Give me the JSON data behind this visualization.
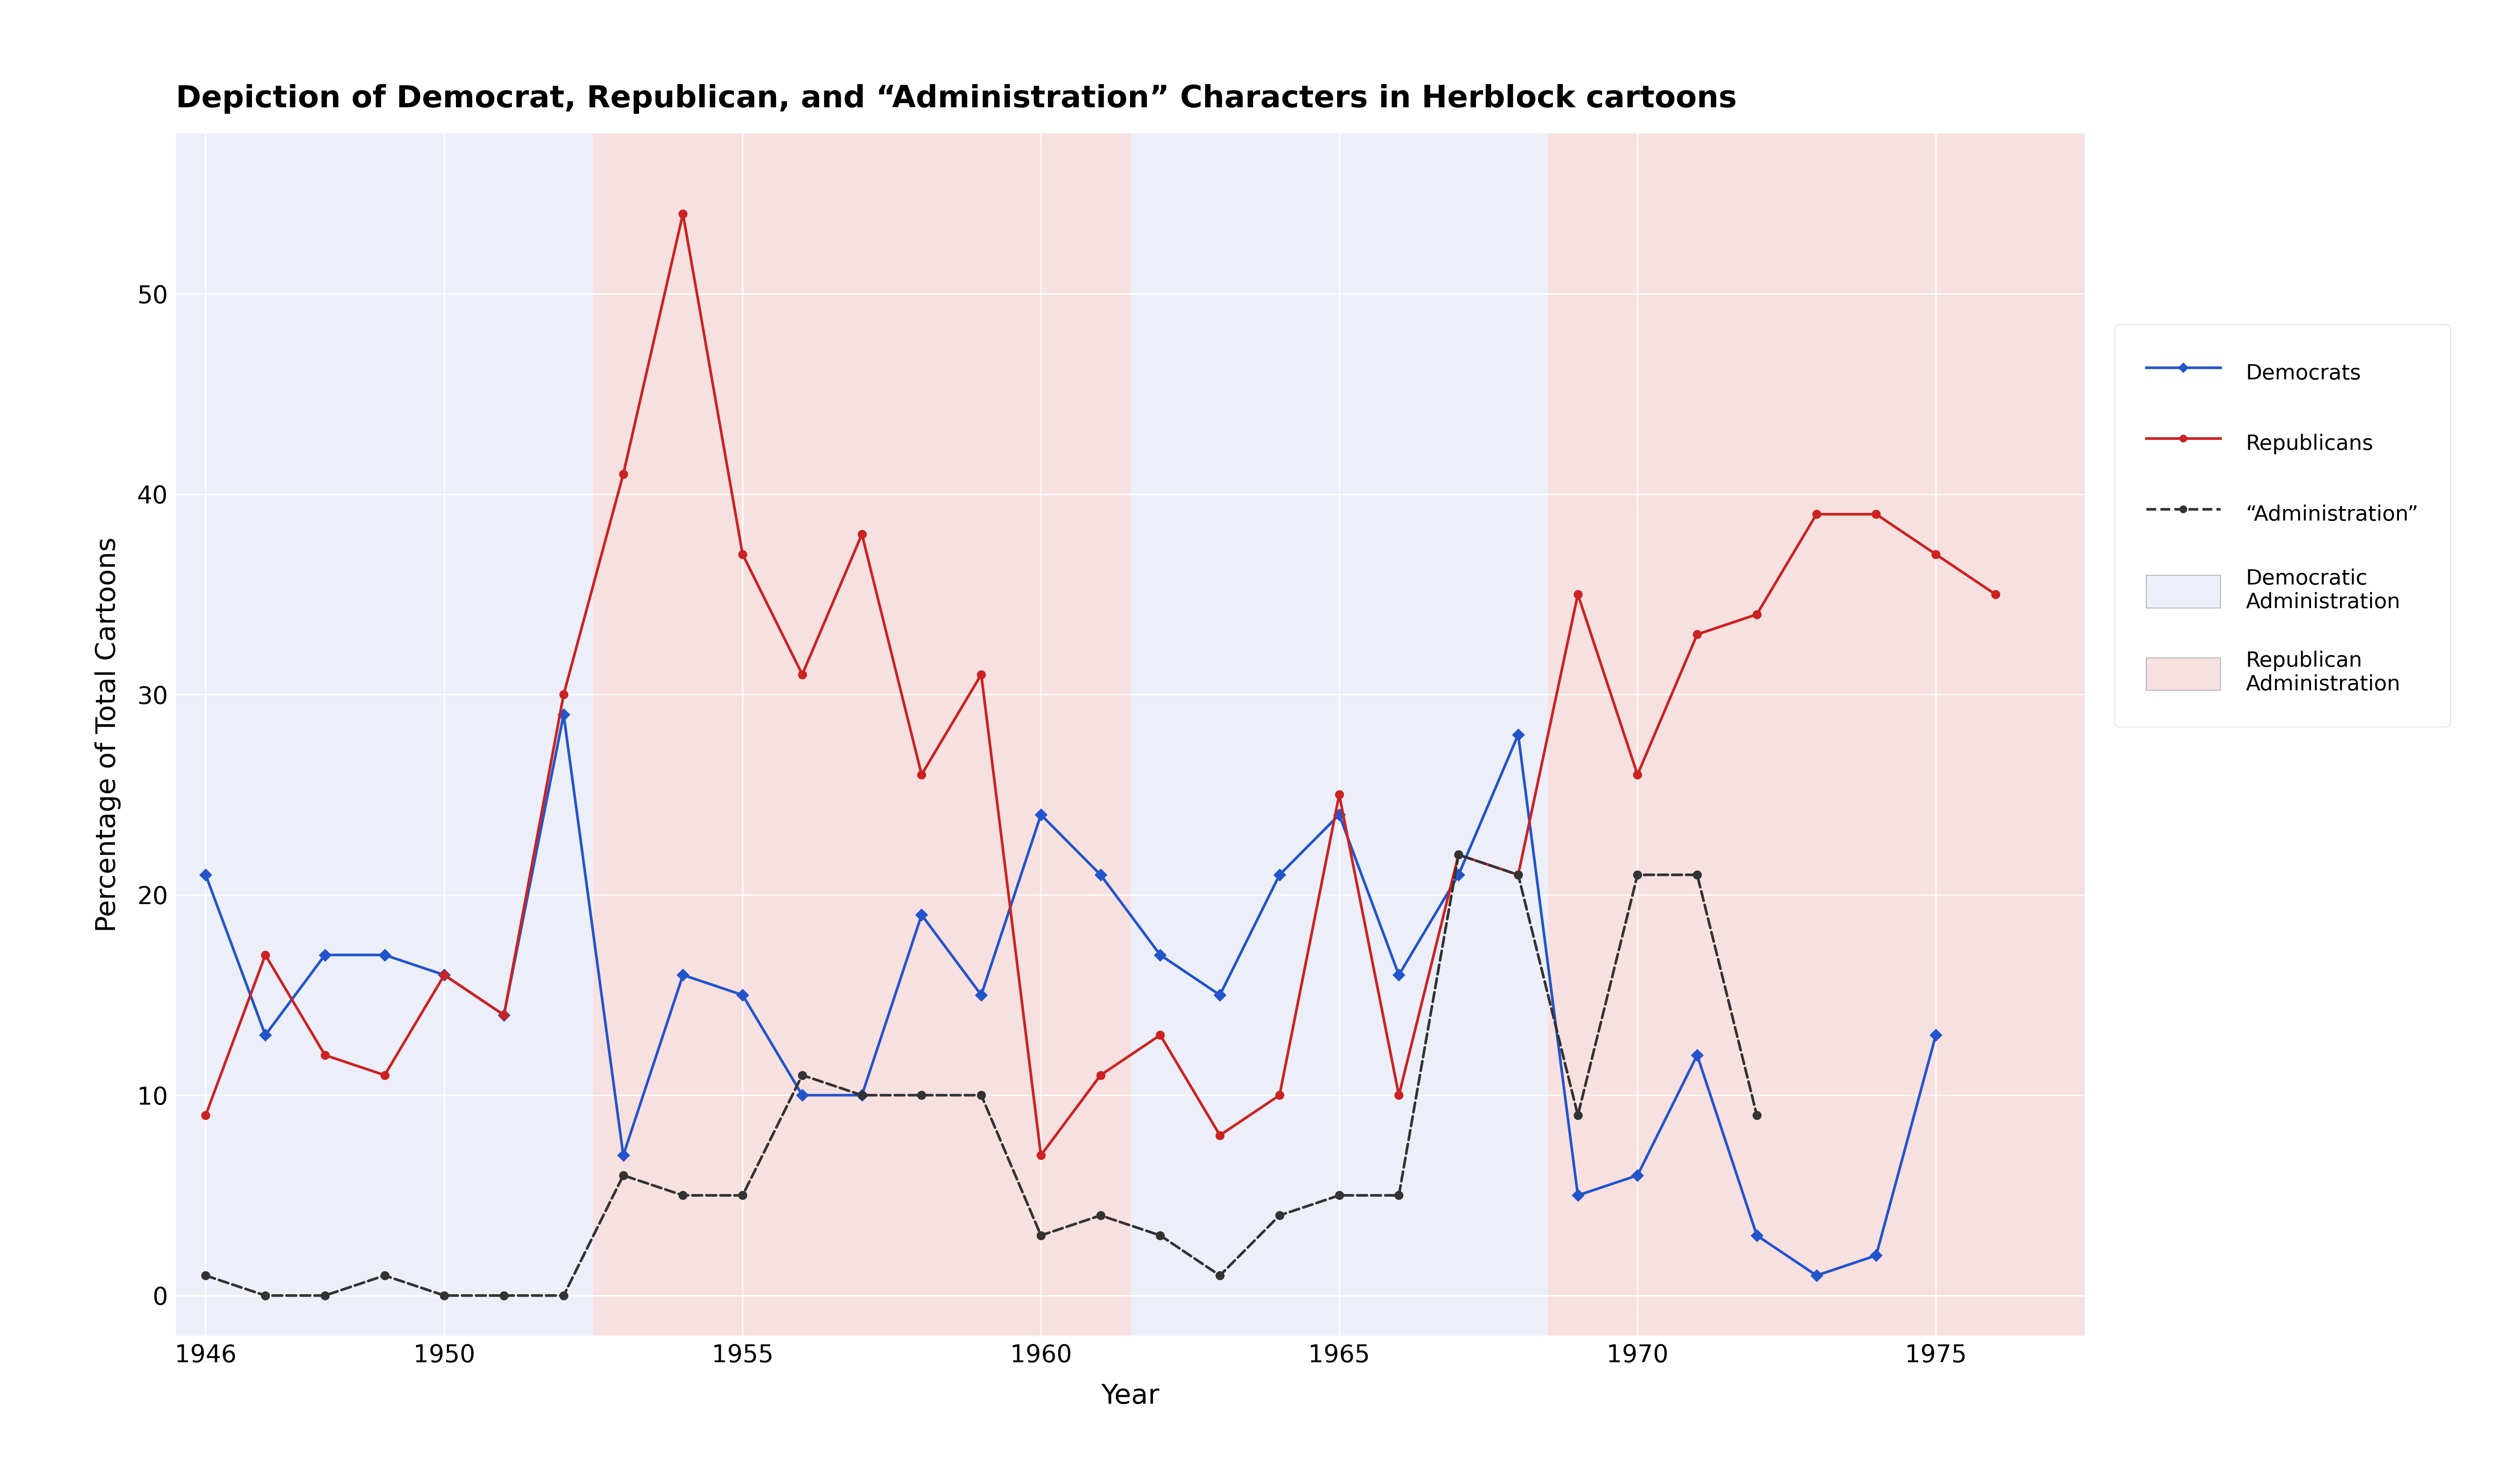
{
  "title": "Depiction of Democrat, Republican, and “Administration” Characters in Herblock cartoons",
  "xlabel": "Year",
  "ylabel": "Percentage of Total Cartoons",
  "years": [
    1946,
    1947,
    1948,
    1949,
    1950,
    1951,
    1952,
    1953,
    1954,
    1955,
    1956,
    1957,
    1958,
    1959,
    1960,
    1961,
    1962,
    1963,
    1964,
    1965,
    1966,
    1967,
    1968,
    1969,
    1970,
    1971,
    1972,
    1973,
    1974,
    1975,
    1976
  ],
  "democrats": [
    21,
    13,
    17,
    17,
    16,
    14,
    29,
    7,
    16,
    15,
    10,
    10,
    19,
    15,
    24,
    21,
    17,
    15,
    21,
    24,
    16,
    21,
    28,
    5,
    6,
    12,
    3,
    1,
    2,
    13,
    null
  ],
  "republicans": [
    9,
    17,
    12,
    11,
    16,
    14,
    30,
    41,
    54,
    37,
    31,
    38,
    26,
    31,
    7,
    11,
    13,
    8,
    10,
    25,
    10,
    22,
    21,
    35,
    26,
    33,
    34,
    39,
    39,
    37,
    35
  ],
  "administration": [
    1,
    0,
    0,
    1,
    0,
    0,
    0,
    6,
    5,
    5,
    11,
    10,
    10,
    10,
    3,
    4,
    3,
    1,
    4,
    5,
    5,
    22,
    21,
    9,
    21,
    21,
    9,
    null,
    null,
    null,
    null
  ],
  "dem_color": "#2255cc",
  "rep_color": "#cc2222",
  "admin_color": "#333333",
  "background_color": "#ffffff",
  "dem_bg_color": "#eceef8",
  "rep_bg_color": "#f7e0e0",
  "ylim": [
    -2,
    58
  ],
  "xlim": [
    1945.5,
    1977.5
  ],
  "x_ticks": [
    1946,
    1950,
    1955,
    1960,
    1965,
    1970,
    1975
  ],
  "y_ticks": [
    0,
    10,
    20,
    30,
    40,
    50
  ],
  "title_fontsize": 58,
  "tick_fontsize": 46,
  "label_fontsize": 52,
  "legend_fontsize": 40,
  "lw": 5.0,
  "ms": 16,
  "grid_lw": 2.5
}
